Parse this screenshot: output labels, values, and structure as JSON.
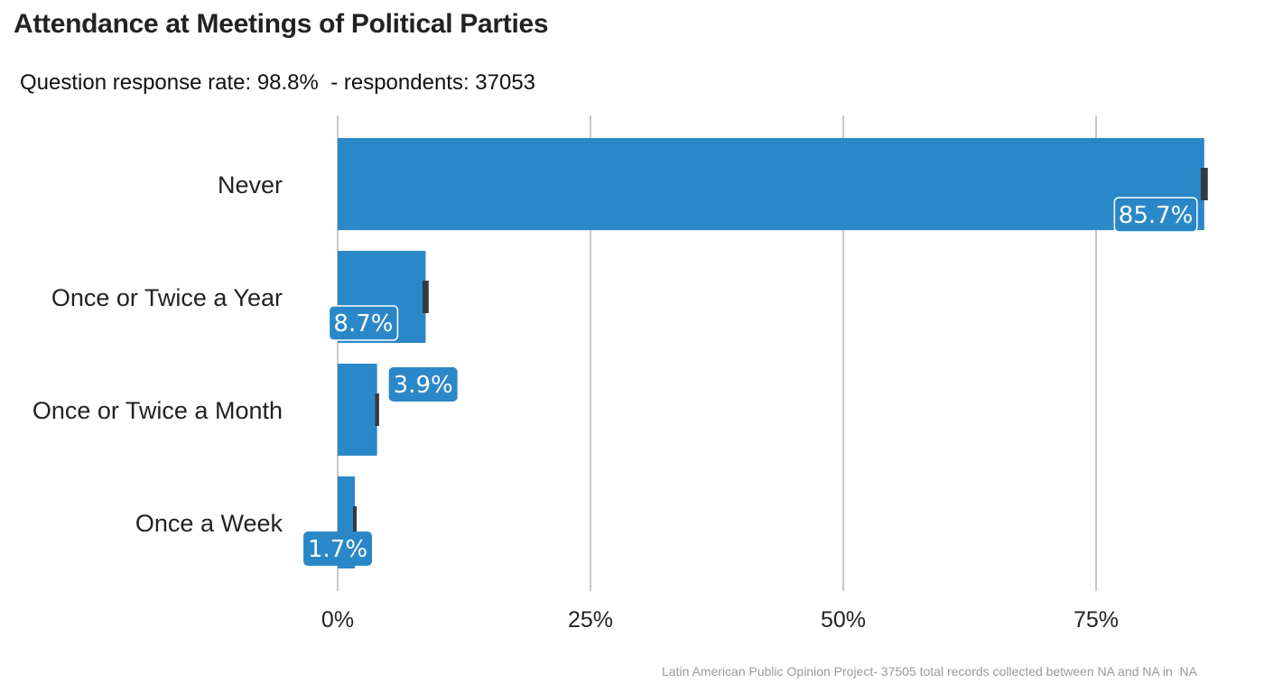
{
  "chart_data": {
    "type": "bar",
    "orientation": "horizontal",
    "title": "Attendance at Meetings of Political Parties",
    "subtitle": "Question response rate: 98.8%  - respondents: 37053",
    "caption": "Latin American Public Opinion Project- 37505 total records collected between NA and NA in  NA",
    "categories": [
      "Never",
      "Once or Twice a Year",
      "Once or Twice a Month",
      "Once a Week"
    ],
    "values": [
      85.7,
      8.7,
      3.9,
      1.7
    ],
    "value_labels": [
      "85.7%",
      "8.7%",
      "3.9%",
      "1.7%"
    ],
    "error_margin": [
      0.35,
      0.3,
      0.2,
      0.15
    ],
    "xlim": [
      0,
      87
    ],
    "x_ticks": [
      0,
      25,
      50,
      75
    ],
    "x_tick_labels": [
      "0%",
      "25%",
      "50%",
      "75%"
    ],
    "xlabel": "",
    "ylabel": "",
    "grid": "vertical-major",
    "legend": "none",
    "colors": {
      "bar": "#2b88c8",
      "grid": "#c8c8c8",
      "error_bar": "#333a40",
      "label_fill": "#2b88c8",
      "label_text": "#ffffff"
    }
  }
}
